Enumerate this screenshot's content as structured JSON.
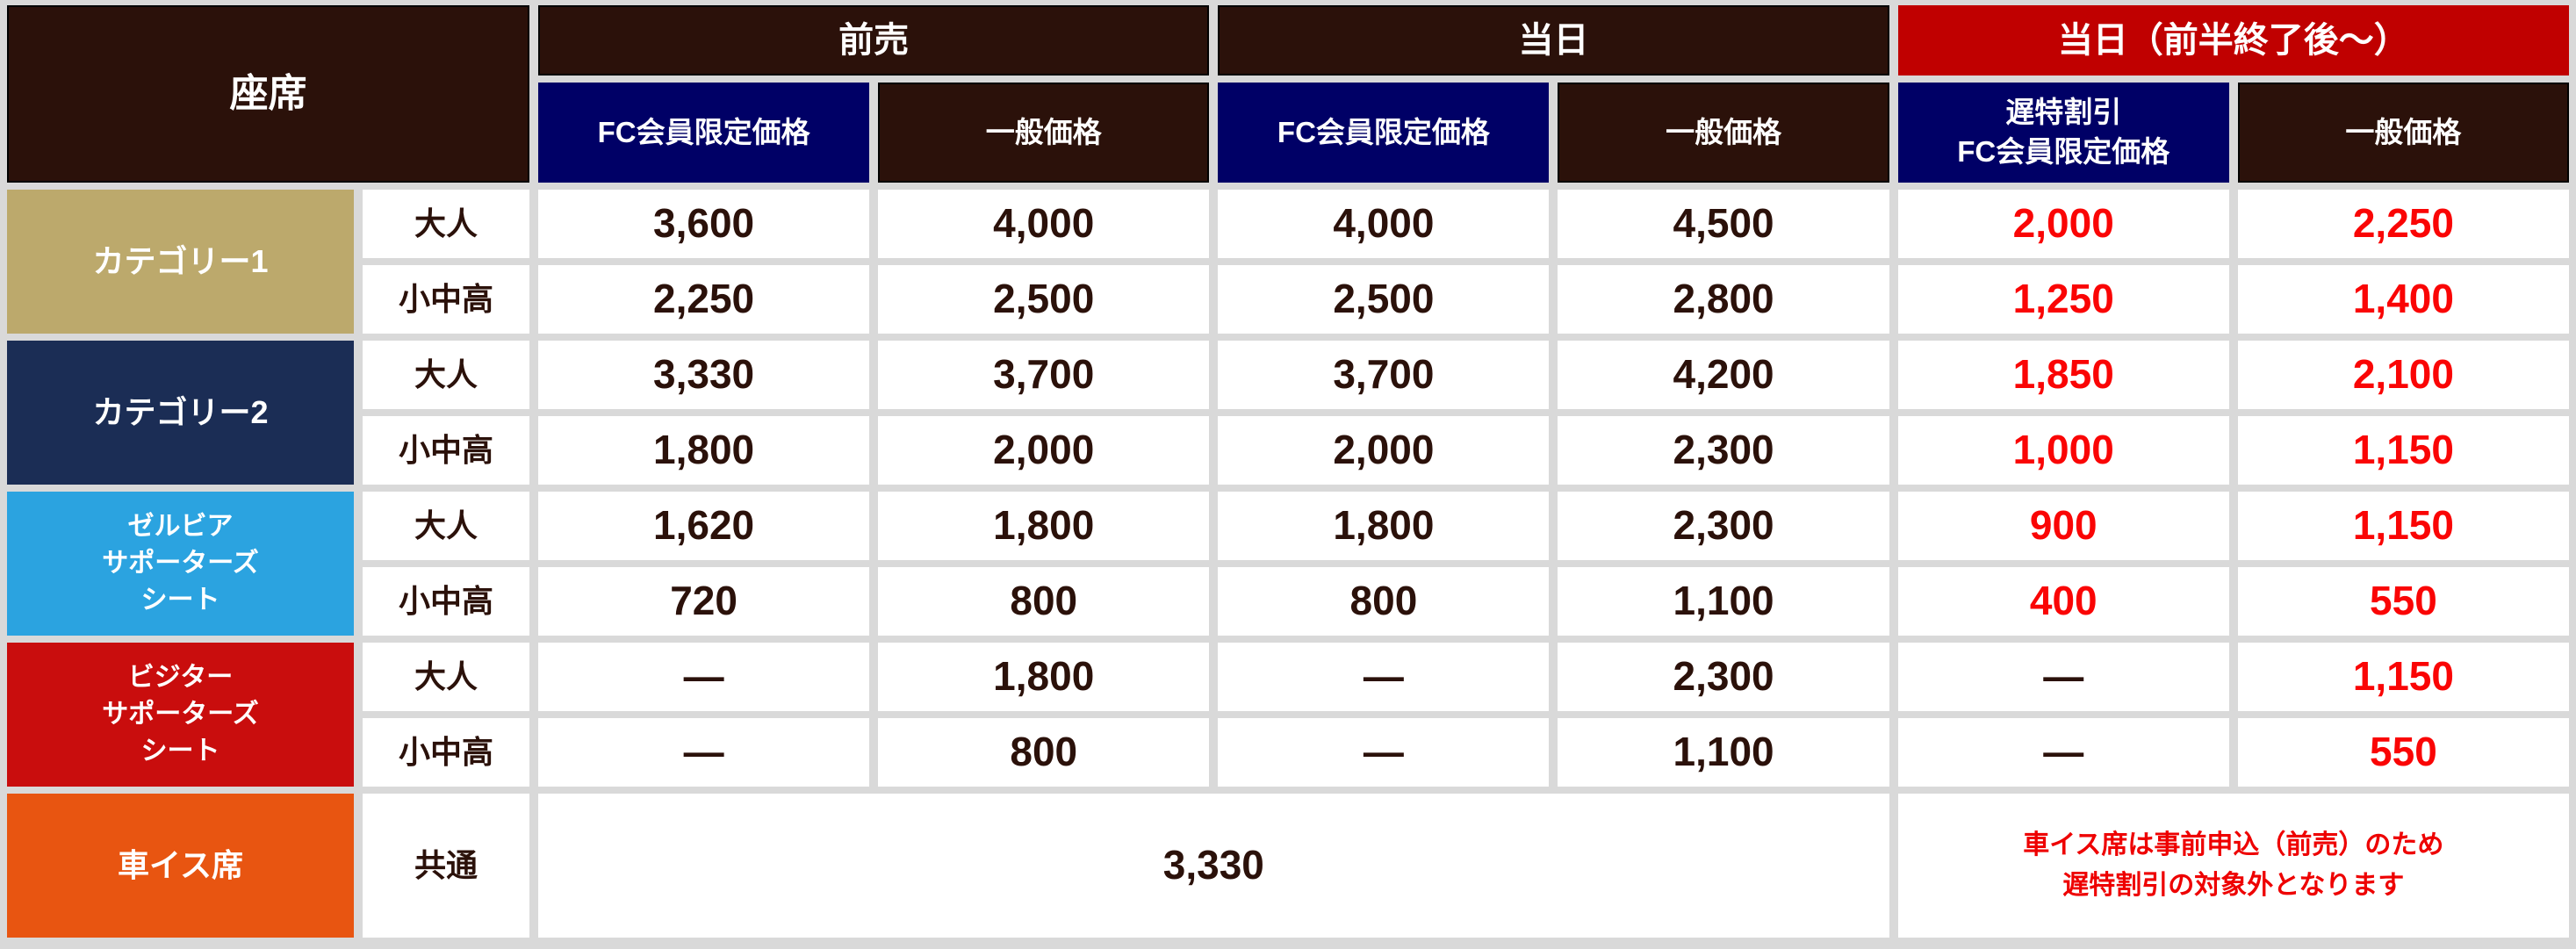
{
  "table": {
    "corner_label": "座席",
    "group_headers": {
      "advance": "前売",
      "sameday": "当日",
      "sameday_late": "当日（前半終了後～）"
    },
    "sub_headers": {
      "advance_fc": "FC会員限定価格",
      "advance_general": "一般価格",
      "sameday_fc": "FC会員限定価格",
      "sameday_general": "一般価格",
      "late_fc": "遅特割引\nFC会員限定価格",
      "late_general": "一般価格"
    },
    "colors": {
      "header_brown": "#2b110a",
      "header_navy": "#000066",
      "header_red": "#c00000",
      "category1": "#bca96c",
      "category2": "#1b2d55",
      "zelvia_blue": "#2ba3e0",
      "visitor_red": "#c90d0d",
      "wheelchair_orange": "#e85511",
      "price_dark": "#2b110a",
      "price_red": "#fa0505"
    },
    "seat_groups": [
      {
        "name": "カテゴリー1",
        "rows": [
          {
            "age": "大人",
            "values": [
              "3,600",
              "4,000",
              "4,000",
              "4,500",
              "2,000",
              "2,250"
            ]
          },
          {
            "age": "小中高",
            "values": [
              "2,250",
              "2,500",
              "2,500",
              "2,800",
              "1,250",
              "1,400"
            ]
          }
        ]
      },
      {
        "name": "カテゴリー2",
        "rows": [
          {
            "age": "大人",
            "values": [
              "3,330",
              "3,700",
              "3,700",
              "4,200",
              "1,850",
              "2,100"
            ]
          },
          {
            "age": "小中高",
            "values": [
              "1,800",
              "2,000",
              "2,000",
              "2,300",
              "1,000",
              "1,150"
            ]
          }
        ]
      },
      {
        "name": "ゼルビア\nサポーターズ\nシート",
        "rows": [
          {
            "age": "大人",
            "values": [
              "1,620",
              "1,800",
              "1,800",
              "2,300",
              "900",
              "1,150"
            ]
          },
          {
            "age": "小中高",
            "values": [
              "720",
              "800",
              "800",
              "1,100",
              "400",
              "550"
            ]
          }
        ]
      },
      {
        "name": "ビジター\nサポーターズ\nシート",
        "rows": [
          {
            "age": "大人",
            "values": [
              "—",
              "1,800",
              "—",
              "2,300",
              "—",
              "1,150"
            ]
          },
          {
            "age": "小中高",
            "values": [
              "—",
              "800",
              "—",
              "1,100",
              "—",
              "550"
            ]
          }
        ]
      }
    ],
    "wheelchair": {
      "name": "車イス席",
      "age": "共通",
      "merged_price": "3,330",
      "note": "車イス席は事前申込（前売）のため\n遅特割引の対象外となります"
    }
  }
}
